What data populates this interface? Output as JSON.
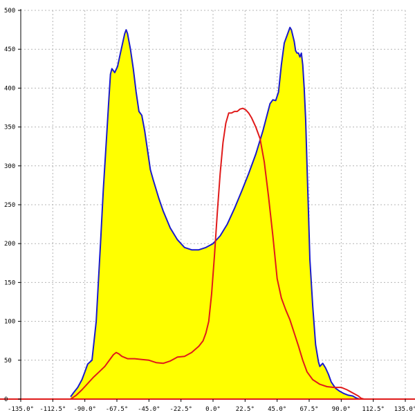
{
  "chart_data": {
    "type": "area",
    "title": "",
    "xlabel": "",
    "ylabel": "",
    "xlim": [
      -135,
      135
    ],
    "ylim": [
      0,
      500
    ],
    "grid": true,
    "legend": "none",
    "x_tick_values": [
      -135,
      -112.5,
      -90,
      -67.5,
      -45,
      -22.5,
      0,
      22.5,
      45,
      67.5,
      90,
      112.5,
      135
    ],
    "x_tick_labels": [
      "-135.0°",
      "-112.5°",
      "-90.0°",
      "-67.5°",
      "-45.0°",
      "-22.5°",
      "0.0°",
      "22.5°",
      "45.0°",
      "67.5°",
      "90.0°",
      "112.5°",
      "135.0°"
    ],
    "y_tick_values": [
      0,
      50,
      100,
      150,
      200,
      250,
      300,
      350,
      400,
      450,
      500
    ],
    "y_tick_labels": [
      "0",
      "50",
      "100",
      "150",
      "200",
      "250",
      "300",
      "350",
      "400",
      "450",
      "500"
    ],
    "series": [
      {
        "color": "#1a1acc",
        "fill": "#ffff00",
        "x": [
          -100,
          -98,
          -95,
          -92,
          -90,
          -88,
          -85,
          -82,
          -79,
          -77,
          -75,
          -73,
          -72,
          -71,
          -69,
          -67,
          -65,
          -63,
          -62,
          -61,
          -60,
          -59,
          -58,
          -56,
          -54,
          -52,
          -50,
          -48,
          -46,
          -44,
          -42,
          -40,
          -38,
          -35,
          -30,
          -25,
          -20,
          -15,
          -10,
          -5,
          0,
          5,
          10,
          15,
          20,
          25,
          30,
          35,
          40,
          42,
          44,
          46,
          48,
          50,
          52,
          54,
          55,
          57,
          58,
          59,
          60,
          61,
          62,
          63,
          64,
          65,
          66,
          67,
          68,
          70,
          72,
          74,
          75,
          77,
          79,
          81,
          83,
          86,
          89,
          92,
          95,
          98,
          100,
          101,
          102,
          103
        ],
        "y": [
          3,
          8,
          15,
          25,
          35,
          45,
          50,
          100,
          200,
          270,
          330,
          390,
          418,
          425,
          420,
          428,
          445,
          462,
          470,
          475,
          470,
          460,
          450,
          425,
          395,
          370,
          365,
          345,
          320,
          295,
          282,
          270,
          258,
          242,
          220,
          205,
          195,
          192,
          192,
          195,
          200,
          210,
          225,
          245,
          267,
          290,
          315,
          345,
          380,
          385,
          384,
          395,
          430,
          458,
          468,
          478,
          475,
          460,
          448,
          445,
          445,
          440,
          445,
          430,
          400,
          360,
          300,
          240,
          180,
          120,
          70,
          48,
          42,
          46,
          40,
          32,
          22,
          14,
          10,
          7,
          5,
          4,
          2,
          1,
          0.5,
          0
        ]
      },
      {
        "color": "#e01a1a",
        "fill": "none",
        "x": [
          -100,
          -96,
          -92,
          -88,
          -84,
          -80,
          -76,
          -72,
          -70,
          -68,
          -66,
          -64,
          -60,
          -55,
          -50,
          -45,
          -40,
          -35,
          -30,
          -25,
          -20,
          -15,
          -10,
          -7,
          -5,
          -3,
          -1,
          1,
          3,
          5,
          7,
          9,
          11,
          13,
          15,
          17,
          19,
          21,
          23,
          25,
          27,
          30,
          33,
          36,
          39,
          42,
          45,
          48,
          51,
          54,
          57,
          60,
          63,
          66,
          70,
          75,
          80,
          85,
          90,
          94,
          98,
          102,
          104,
          106
        ],
        "y": [
          0,
          5,
          12,
          20,
          28,
          35,
          42,
          52,
          57,
          60,
          58,
          55,
          52,
          52,
          51,
          50,
          47,
          46,
          49,
          54,
          55,
          60,
          68,
          75,
          85,
          100,
          135,
          185,
          240,
          290,
          330,
          355,
          368,
          368,
          370,
          370,
          373,
          374,
          372,
          368,
          362,
          350,
          335,
          305,
          260,
          210,
          155,
          130,
          115,
          102,
          85,
          68,
          50,
          35,
          25,
          19,
          16,
          15,
          15,
          12,
          8,
          4,
          1,
          0
        ]
      }
    ]
  }
}
